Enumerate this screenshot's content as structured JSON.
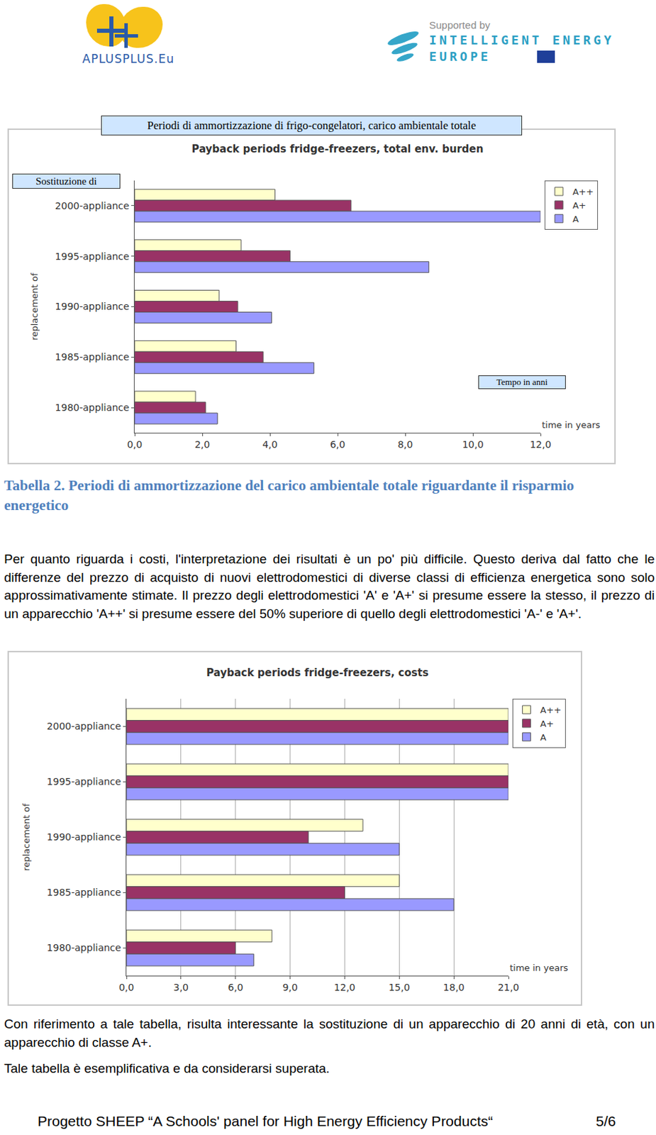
{
  "header": {
    "logo_left": "APLUSPLUS.Eu",
    "logo_right": {
      "line1": "Supported by",
      "line2": "INTELLIGENT ENERGY",
      "line3": "EUROPE"
    }
  },
  "chart_data": [
    {
      "type": "bar",
      "orientation": "horizontal",
      "title": "Payback periods fridge-freezers, total env. burden",
      "ylabel": "replacement of",
      "xlabel": "time in years",
      "translations": {
        "title": "Periodi di ammortizzazione di frigo-congelatori, carico ambientale totale",
        "ylabel": "Sostituzione di",
        "xlabel": "Tempo in anni"
      },
      "categories": [
        "2000-appliance",
        "1995-appliance",
        "1990-appliance",
        "1985-appliance",
        "1980-appliance"
      ],
      "series": [
        {
          "name": "A++",
          "color": "#ffffcc",
          "values": [
            4.15,
            3.15,
            2.5,
            3.0,
            1.8
          ]
        },
        {
          "name": "A+",
          "color": "#993366",
          "values": [
            6.4,
            4.6,
            3.05,
            3.8,
            2.1
          ]
        },
        {
          "name": "A",
          "color": "#9999ff",
          "values": [
            12.0,
            8.7,
            4.05,
            5.3,
            2.45
          ]
        }
      ],
      "xlim": [
        0,
        12
      ],
      "xticks": [
        {
          "value": 0,
          "label": "0,0"
        },
        {
          "value": 2,
          "label": "2,0"
        },
        {
          "value": 4,
          "label": "4,0"
        },
        {
          "value": 6,
          "label": "6,0"
        },
        {
          "value": 8,
          "label": "8,0"
        },
        {
          "value": 10,
          "label": "10,0"
        },
        {
          "value": 12,
          "label": "12,0"
        }
      ],
      "grid": false,
      "legend": "top-right"
    },
    {
      "type": "bar",
      "orientation": "horizontal",
      "title": "Payback periods fridge-freezers, costs",
      "ylabel": "replacement of",
      "xlabel": "time in years",
      "categories": [
        "2000-appliance",
        "1995-appliance",
        "1990-appliance",
        "1985-appliance",
        "1980-appliance"
      ],
      "series": [
        {
          "name": "A++",
          "color": "#ffffcc",
          "values": [
            21.0,
            21.0,
            13.0,
            15.0,
            8.0
          ]
        },
        {
          "name": "A+",
          "color": "#993366",
          "values": [
            21.0,
            21.0,
            10.0,
            12.0,
            6.0
          ]
        },
        {
          "name": "A",
          "color": "#9999ff",
          "values": [
            21.0,
            21.0,
            15.0,
            18.0,
            7.0
          ]
        }
      ],
      "xlim": [
        0,
        21
      ],
      "xticks": [
        {
          "value": 0,
          "label": "0,0"
        },
        {
          "value": 3,
          "label": "3,0"
        },
        {
          "value": 6,
          "label": "6,0"
        },
        {
          "value": 9,
          "label": "9,0"
        },
        {
          "value": 12,
          "label": "12,0"
        },
        {
          "value": 15,
          "label": "15,0"
        },
        {
          "value": 18,
          "label": "18,0"
        },
        {
          "value": 21,
          "label": "21,0"
        }
      ],
      "grid": true,
      "legend": "top-right"
    }
  ],
  "caption": "Tabella 2. Periodi di ammortizzazione del carico ambientale totale riguardante il risparmio energetico",
  "paragraphs": [
    "Per quanto riguarda i costi, l'interpretazione dei risultati è un po' più difficile. Questo deriva dal fatto che le differenze del prezzo di acquisto di nuovi elettrodomestici di diverse classi di efficienza energetica sono solo approssimativamente stimate. Il prezzo degli elettrodomestici 'A' e 'A+' si presume essere la stesso, il prezzo di un apparecchio 'A++' si presume essere del 50% superiore di quello degli elettrodomestici 'A-' e 'A+'.",
    "Con riferimento a tale tabella, risulta interessante la sostituzione di un apparecchio di 20 anni di età, con un apparecchio di classe A+.",
    "Tale tabella è esemplificativa e da considerarsi superata."
  ],
  "footer": {
    "text": "Progetto SHEEP “A Schools' panel for High Energy Efficiency Products“",
    "page": "5/6"
  }
}
